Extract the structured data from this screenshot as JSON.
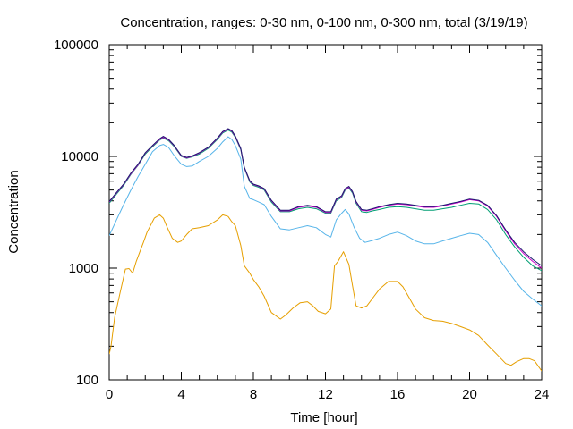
{
  "chart_data": {
    "type": "line",
    "title": "Concentration, ranges: 0-30 nm, 0-100 nm, 0-300 nm, total (3/19/19)",
    "xlabel": "Time [hour]",
    "ylabel": "Concentration",
    "xlim": [
      0,
      24
    ],
    "ylim": [
      100,
      100000
    ],
    "yscale": "log",
    "grid": false,
    "legend": "none",
    "x_ticks": [
      0,
      4,
      8,
      12,
      16,
      20,
      24
    ],
    "x_tick_labels": [
      "0",
      "4",
      "8",
      "12",
      "16",
      "20",
      "24"
    ],
    "y_ticks": [
      100,
      1000,
      10000,
      100000
    ],
    "y_tick_labels": [
      "100",
      "1000",
      "10000",
      "100000"
    ],
    "series": [
      {
        "color": "#e69f00",
        "x": [
          0,
          0.1,
          0.3,
          0.6,
          0.9,
          1.1,
          1.3,
          1.5,
          1.7,
          1.9,
          2.1,
          2.5,
          2.8,
          3.0,
          3.2,
          3.5,
          3.8,
          4.0,
          4.3,
          4.6,
          5.0,
          5.5,
          6.0,
          6.3,
          6.6,
          6.8,
          7.0,
          7.3,
          7.5,
          7.8,
          8.0,
          8.3,
          8.6,
          9.0,
          9.5,
          9.8,
          10.2,
          10.6,
          11.0,
          11.3,
          11.6,
          12.0,
          12.3,
          12.5,
          12.7,
          13.0,
          13.3,
          13.5,
          13.7,
          14.0,
          14.3,
          14.7,
          15.0,
          15.5,
          16.0,
          16.3,
          16.6,
          17.0,
          17.5,
          18.0,
          18.5,
          19.0,
          19.5,
          20.0,
          20.5,
          21.0,
          21.5,
          22.0,
          22.3,
          22.6,
          23.0,
          23.3,
          23.6,
          24.0
        ],
        "values": [
          170,
          200,
          360,
          600,
          980,
          990,
          900,
          1150,
          1400,
          1700,
          2100,
          2800,
          3000,
          2800,
          2350,
          1850,
          1700,
          1750,
          2000,
          2250,
          2300,
          2400,
          2700,
          3000,
          2900,
          2600,
          2400,
          1600,
          1050,
          900,
          790,
          680,
          560,
          400,
          350,
          380,
          440,
          490,
          500,
          460,
          410,
          390,
          430,
          1050,
          1150,
          1400,
          1080,
          700,
          460,
          440,
          460,
          560,
          650,
          760,
          760,
          680,
          560,
          430,
          360,
          340,
          335,
          320,
          300,
          280,
          250,
          205,
          170,
          140,
          135,
          145,
          155,
          155,
          148,
          120
        ]
      },
      {
        "color": "#56b4e9",
        "x": [
          0,
          0.4,
          0.8,
          1.2,
          1.6,
          2.0,
          2.4,
          2.8,
          3.0,
          3.3,
          3.6,
          4.0,
          4.3,
          4.6,
          5.0,
          5.5,
          6.0,
          6.3,
          6.6,
          6.8,
          7.0,
          7.3,
          7.5,
          7.8,
          8.0,
          8.3,
          8.6,
          9.0,
          9.5,
          10.0,
          10.5,
          11.0,
          11.5,
          12.0,
          12.3,
          12.6,
          12.9,
          13.1,
          13.3,
          13.6,
          13.9,
          14.2,
          14.5,
          15.0,
          15.5,
          16.0,
          16.5,
          17.0,
          17.5,
          18.0,
          18.5,
          19.0,
          19.5,
          20.0,
          20.5,
          21.0,
          21.5,
          22.0,
          22.5,
          23.0,
          23.5,
          24.0
        ],
        "values": [
          1950,
          2700,
          3700,
          5000,
          6600,
          8500,
          11000,
          12500,
          12800,
          12000,
          10200,
          8500,
          8100,
          8200,
          9000,
          10000,
          11800,
          13500,
          15000,
          14200,
          12500,
          9500,
          5400,
          4200,
          4100,
          3900,
          3700,
          2900,
          2250,
          2200,
          2300,
          2400,
          2300,
          2000,
          1900,
          2700,
          3100,
          3350,
          3050,
          2300,
          1850,
          1700,
          1750,
          1850,
          2000,
          2100,
          1950,
          1750,
          1650,
          1650,
          1750,
          1850,
          1950,
          2050,
          2000,
          1700,
          1300,
          1000,
          780,
          620,
          530,
          460
        ]
      },
      {
        "color": "#009e73",
        "x": [
          0,
          0.4,
          0.8,
          1.2,
          1.6,
          2.0,
          2.4,
          2.8,
          3.0,
          3.3,
          3.6,
          4.0,
          4.3,
          4.6,
          5.0,
          5.5,
          6.0,
          6.3,
          6.6,
          6.8,
          7.0,
          7.3,
          7.5,
          7.8,
          8.0,
          8.3,
          8.6,
          9.0,
          9.5,
          10.0,
          10.5,
          11.0,
          11.5,
          12.0,
          12.3,
          12.6,
          12.9,
          13.1,
          13.3,
          13.5,
          13.7,
          14.0,
          14.3,
          14.6,
          15.0,
          15.5,
          16.0,
          16.5,
          17.0,
          17.5,
          18.0,
          18.5,
          19.0,
          19.5,
          20.0,
          20.5,
          21.0,
          21.5,
          22.0,
          22.5,
          23.0,
          23.5,
          24.0
        ],
        "values": [
          3800,
          4600,
          5500,
          6900,
          8300,
          10500,
          12200,
          14000,
          14600,
          13800,
          12300,
          10000,
          9600,
          9900,
          10500,
          11800,
          14200,
          16200,
          17200,
          16500,
          14800,
          11500,
          7800,
          5900,
          5500,
          5300,
          5000,
          3900,
          3200,
          3200,
          3400,
          3500,
          3400,
          3100,
          3100,
          4000,
          4300,
          5000,
          5200,
          4700,
          3800,
          3200,
          3150,
          3250,
          3350,
          3500,
          3550,
          3500,
          3400,
          3300,
          3300,
          3400,
          3500,
          3650,
          3800,
          3750,
          3350,
          2700,
          2000,
          1550,
          1250,
          1050,
          950
        ]
      },
      {
        "color": "#cc00cc",
        "x": [
          0,
          0.4,
          0.8,
          1.2,
          1.6,
          2.0,
          2.4,
          2.8,
          3.0,
          3.3,
          3.6,
          4.0,
          4.3,
          4.6,
          5.0,
          5.5,
          6.0,
          6.3,
          6.6,
          6.8,
          7.0,
          7.3,
          7.5,
          7.8,
          8.0,
          8.3,
          8.6,
          9.0,
          9.5,
          10.0,
          10.5,
          11.0,
          11.5,
          12.0,
          12.3,
          12.6,
          12.9,
          13.1,
          13.3,
          13.5,
          13.7,
          14.0,
          14.3,
          14.6,
          15.0,
          15.5,
          16.0,
          16.5,
          17.0,
          17.5,
          18.0,
          18.5,
          19.0,
          19.5,
          20.0,
          20.5,
          21.0,
          21.5,
          22.0,
          22.5,
          23.0,
          23.5,
          24.0
        ],
        "values": [
          3900,
          4700,
          5600,
          7000,
          8400,
          10700,
          12400,
          14200,
          14900,
          14000,
          12500,
          10100,
          9700,
          10000,
          10700,
          12000,
          14400,
          16500,
          17500,
          16800,
          15000,
          11700,
          7900,
          6000,
          5600,
          5400,
          5100,
          4000,
          3250,
          3250,
          3500,
          3600,
          3500,
          3150,
          3150,
          4100,
          4400,
          5100,
          5300,
          4800,
          3900,
          3300,
          3250,
          3350,
          3500,
          3650,
          3750,
          3700,
          3600,
          3500,
          3500,
          3600,
          3750,
          3900,
          4100,
          4000,
          3600,
          2900,
          2150,
          1650,
          1350,
          1150,
          1000
        ]
      },
      {
        "color": "#1a1a6e",
        "x": [
          0,
          0.4,
          0.8,
          1.2,
          1.6,
          2.0,
          2.4,
          2.8,
          3.0,
          3.3,
          3.6,
          4.0,
          4.3,
          4.6,
          5.0,
          5.5,
          6.0,
          6.3,
          6.6,
          6.8,
          7.0,
          7.3,
          7.5,
          7.8,
          8.0,
          8.3,
          8.6,
          9.0,
          9.5,
          10.0,
          10.5,
          11.0,
          11.5,
          12.0,
          12.3,
          12.6,
          12.9,
          13.1,
          13.3,
          13.5,
          13.7,
          14.0,
          14.3,
          14.6,
          15.0,
          15.5,
          16.0,
          16.5,
          17.0,
          17.5,
          18.0,
          18.5,
          19.0,
          19.5,
          20.0,
          20.5,
          21.0,
          21.5,
          22.0,
          22.5,
          23.0,
          23.5,
          24.0
        ],
        "values": [
          3950,
          4750,
          5650,
          7100,
          8500,
          10800,
          12500,
          14400,
          15100,
          14200,
          12600,
          10200,
          9800,
          10100,
          10800,
          12100,
          14600,
          16700,
          17700,
          17000,
          15200,
          11800,
          8000,
          6050,
          5650,
          5450,
          5150,
          4050,
          3300,
          3300,
          3550,
          3650,
          3550,
          3200,
          3200,
          4150,
          4450,
          5150,
          5400,
          4850,
          3950,
          3350,
          3300,
          3400,
          3550,
          3700,
          3800,
          3750,
          3650,
          3550,
          3550,
          3650,
          3800,
          3950,
          4150,
          4050,
          3650,
          2950,
          2200,
          1700,
          1400,
          1200,
          1050
        ]
      }
    ]
  }
}
